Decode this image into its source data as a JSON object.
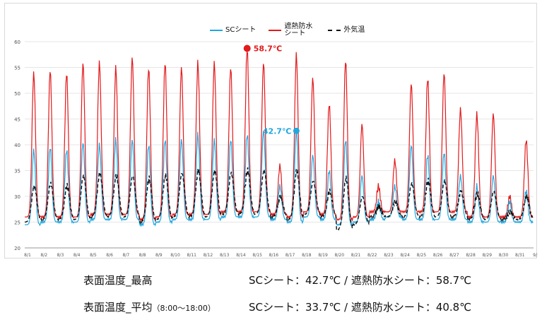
{
  "legend": {
    "sc": "SCシート",
    "red": "遮熱防水\nシート",
    "air": "外気温"
  },
  "colors": {
    "sc": "#1ea8e0",
    "red": "#e3191b",
    "air": "#111111",
    "grid": "#e6e6e6",
    "axis": "#999999"
  },
  "annotations": {
    "red_max": "58.7℃",
    "sc_max": "42.7℃"
  },
  "summary": {
    "row1_label": "表面温度_最高",
    "row1_value": "SCシート：42.7℃ / 遮熱防水シート：58.7℃",
    "row2_label": "表面温度_平均",
    "row2_note": "（8:00～18:00）",
    "row2_value": "SCシート：33.7℃ / 遮熱防水シート：40.8℃"
  },
  "chart_data": {
    "type": "line",
    "ylim": [
      20,
      60
    ],
    "yticks": [
      20,
      25,
      30,
      35,
      40,
      45,
      50,
      55,
      60
    ],
    "grid": true,
    "legend_position": "top",
    "categories": [
      "8/1",
      "8/2",
      "8/3",
      "8/4",
      "8/5",
      "8/6",
      "8/7",
      "8/8",
      "8/9",
      "8/10",
      "8/11",
      "8/12",
      "8/13",
      "8/14",
      "8/15",
      "8/16",
      "8/17",
      "8/18",
      "8/19",
      "8/20",
      "8/21",
      "8/22",
      "8/23",
      "8/24",
      "8/25",
      "8/26",
      "8/27",
      "8/28",
      "8/29",
      "8/30",
      "8/31",
      "9/1"
    ],
    "series": [
      {
        "name": "SCシート",
        "daily_min": [
          24.5,
          25,
          25,
          25,
          25.5,
          25.5,
          25.5,
          24.5,
          25,
          25.5,
          25.5,
          25.5,
          26,
          26,
          26,
          25.5,
          25,
          26,
          25.5,
          24.5,
          25,
          25.5,
          26,
          25.5,
          25.5,
          25.5,
          25.5,
          25,
          25,
          25,
          25
        ],
        "daily_max": [
          39,
          39.5,
          39,
          40.5,
          40,
          41,
          41,
          40,
          41,
          41,
          42,
          41,
          41,
          42,
          42.7,
          32,
          42.7,
          38,
          35,
          41,
          34,
          29,
          32,
          40,
          38,
          38.5,
          34,
          32,
          34,
          29,
          31
        ]
      },
      {
        "name": "遮熱防水シート",
        "daily_min": [
          26,
          26,
          26,
          26,
          26.5,
          26.5,
          26.5,
          25.5,
          26,
          26.5,
          26.5,
          26.5,
          27,
          27,
          27,
          26.5,
          26,
          27,
          26.5,
          25.5,
          26,
          27,
          27,
          27,
          27,
          27,
          27,
          26,
          26,
          26,
          26
        ],
        "daily_max": [
          54,
          54.5,
          54,
          56,
          56,
          55,
          57,
          55,
          56,
          55,
          56,
          56,
          55,
          58.7,
          56,
          36,
          57.5,
          53,
          48,
          56.5,
          44,
          32,
          37,
          52,
          53,
          54,
          47,
          46,
          46,
          30,
          41
        ]
      },
      {
        "name": "外気温",
        "daily_min": [
          25,
          25.5,
          25.5,
          25.5,
          26,
          26,
          26,
          25,
          25.5,
          26,
          26,
          26,
          26.5,
          26.5,
          26.5,
          26,
          25.5,
          26.5,
          26,
          23.5,
          24.5,
          26,
          26,
          26,
          26,
          26,
          26,
          25.5,
          25.5,
          25.5,
          25.5
        ],
        "daily_max": [
          32,
          32.5,
          32,
          34,
          34.5,
          34,
          34,
          33.5,
          34,
          34.5,
          35,
          35,
          34.5,
          35,
          35,
          30,
          35,
          33,
          31,
          33.5,
          30,
          28,
          29,
          32.5,
          33,
          33,
          31,
          30.5,
          31,
          27,
          30
        ]
      }
    ]
  }
}
